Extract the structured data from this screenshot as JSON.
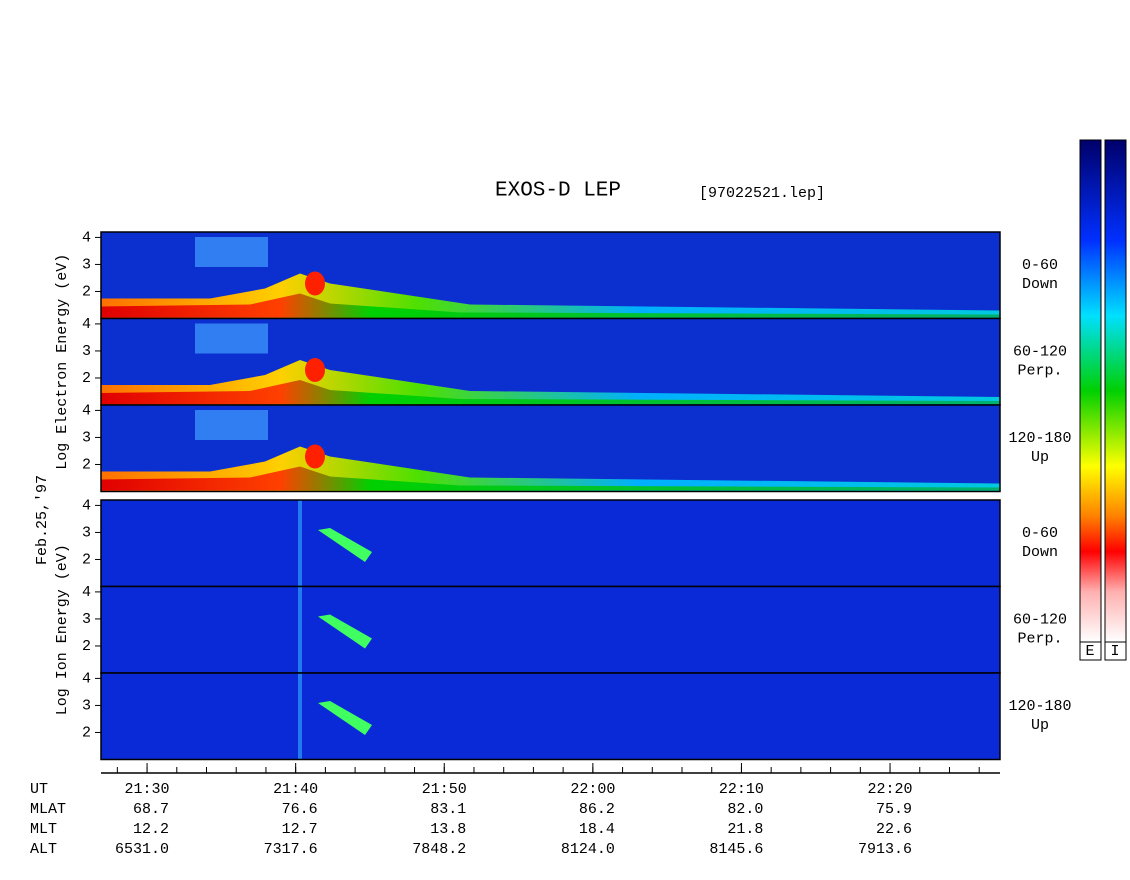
{
  "title": "EXOS-D LEP",
  "file": "[97022521.lep]",
  "date": "Feb.25,'97",
  "energy_ylim": [
    1,
    4.2
  ],
  "energy_yticks": [
    2,
    3,
    4
  ],
  "groups": [
    {
      "axis_label": "Log Electron Energy (eV)",
      "panels": [
        {
          "angle": "0-60",
          "direction": "Down"
        },
        {
          "angle": "60-120",
          "direction": "Perp."
        },
        {
          "angle": "120-180",
          "direction": "Up"
        }
      ]
    },
    {
      "axis_label": "Log Ion Energy (eV)",
      "panels": [
        {
          "angle": "0-60",
          "direction": "Down"
        },
        {
          "angle": "60-120",
          "direction": "Perp."
        },
        {
          "angle": "120-180",
          "direction": "Up"
        }
      ]
    }
  ],
  "time_xlim": [
    1286.9,
    1347.4
  ],
  "time_ticks": [
    {
      "value": 1290,
      "label": "21:30"
    },
    {
      "value": 1300,
      "label": "21:40"
    },
    {
      "value": 1310,
      "label": "21:50"
    },
    {
      "value": 1320,
      "label": "22:00"
    },
    {
      "value": 1330,
      "label": "22:10"
    },
    {
      "value": 1340,
      "label": "22:20"
    }
  ],
  "orbit": {
    "row_labels": [
      "UT",
      "MLAT",
      "MLT",
      "ALT"
    ],
    "rows": [
      [
        "68.7",
        "76.6",
        "83.1",
        "86.2",
        "82.0",
        "75.9"
      ],
      [
        "12.2",
        "12.7",
        "13.8",
        "18.4",
        "21.8",
        "22.6"
      ],
      [
        "6531.0",
        "7317.6",
        "7848.2",
        "8124.0",
        "8145.6",
        "7913.6"
      ]
    ]
  },
  "colorbar_labels": [
    "E",
    "I"
  ]
}
